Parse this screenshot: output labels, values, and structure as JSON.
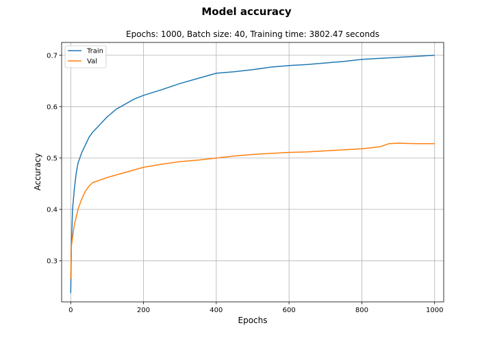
{
  "chart_data": {
    "type": "line",
    "suptitle": "Model accuracy",
    "title": "Epochs: 1000, Batch size: 40, Training time: 3802.47 seconds",
    "xlabel": "Epochs",
    "ylabel": "Accuracy",
    "xlim": [
      -25,
      1025
    ],
    "ylim": [
      0.22,
      0.725
    ],
    "xticks": [
      0,
      200,
      400,
      600,
      800,
      1000
    ],
    "xtick_labels": [
      "0",
      "200",
      "400",
      "600",
      "800",
      "1000"
    ],
    "yticks": [
      0.3,
      0.4,
      0.5,
      0.6,
      0.7
    ],
    "ytick_labels": [
      "0.3",
      "0.4",
      "0.5",
      "0.6",
      "0.7"
    ],
    "grid": true,
    "legend_position": "top-left",
    "series": [
      {
        "name": "Train",
        "color": "#1f77b4",
        "x": [
          0,
          2,
          5,
          10,
          15,
          20,
          30,
          40,
          50,
          60,
          80,
          100,
          125,
          150,
          175,
          200,
          250,
          300,
          350,
          400,
          450,
          500,
          550,
          600,
          650,
          700,
          750,
          800,
          850,
          900,
          950,
          1000
        ],
        "y": [
          0.237,
          0.33,
          0.4,
          0.44,
          0.47,
          0.49,
          0.51,
          0.525,
          0.54,
          0.55,
          0.565,
          0.58,
          0.595,
          0.605,
          0.615,
          0.622,
          0.633,
          0.645,
          0.655,
          0.665,
          0.668,
          0.672,
          0.677,
          0.68,
          0.682,
          0.685,
          0.688,
          0.692,
          0.694,
          0.696,
          0.698,
          0.7
        ]
      },
      {
        "name": "Val",
        "color": "#ff7f0e",
        "x": [
          0,
          2,
          5,
          10,
          15,
          20,
          30,
          40,
          50,
          60,
          80,
          100,
          125,
          150,
          175,
          200,
          250,
          300,
          350,
          400,
          450,
          500,
          550,
          600,
          650,
          700,
          750,
          800,
          850,
          875,
          900,
          950,
          1000
        ],
        "y": [
          0.265,
          0.33,
          0.345,
          0.37,
          0.385,
          0.4,
          0.42,
          0.435,
          0.445,
          0.452,
          0.457,
          0.462,
          0.467,
          0.472,
          0.477,
          0.482,
          0.488,
          0.493,
          0.496,
          0.5,
          0.504,
          0.507,
          0.509,
          0.511,
          0.512,
          0.514,
          0.516,
          0.518,
          0.522,
          0.528,
          0.529,
          0.528,
          0.528
        ]
      }
    ]
  }
}
